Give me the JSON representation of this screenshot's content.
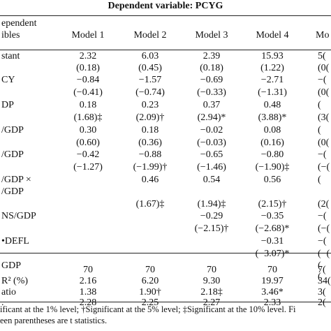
{
  "title": "Dependent variable: PCYG",
  "header": {
    "row_label_lines": [
      "ependent",
      "ibles"
    ],
    "models": [
      "Model 1",
      "Model 2",
      "Model 3",
      "Model 4",
      "Mo"
    ]
  },
  "rows": [
    {
      "label": "stant",
      "cells": [
        "2.32",
        "6.03",
        "2.39",
        "15.93",
        "5("
      ]
    },
    {
      "label": "",
      "cells": [
        "(0.18)",
        "(0.45)",
        "(0.18)",
        "(1.22)",
        "(0("
      ]
    },
    {
      "label": "CY",
      "cells": [
        "−0.84",
        "−1.57",
        "−0.69",
        "−2.71",
        "−("
      ]
    },
    {
      "label": "",
      "cells": [
        "(−0.41)",
        "(−0.74)",
        "(−0.33)",
        "(−1.31)",
        "(0("
      ]
    },
    {
      "label": "DP",
      "cells": [
        "0.18",
        "0.23",
        "0.37",
        "0.48",
        "("
      ]
    },
    {
      "label": "",
      "cells": [
        "(1.68)‡",
        "(2.09)†",
        "(2.94)*",
        "(3.88)*",
        "(3("
      ]
    },
    {
      "label": "/GDP",
      "cells": [
        "0.30",
        "0.18",
        "−0.02",
        "0.08",
        "("
      ]
    },
    {
      "label": "",
      "cells": [
        "(0.60)",
        "(0.36)",
        "(−0.03)",
        "(0.16)",
        "(0("
      ]
    },
    {
      "label": "/GDP",
      "cells": [
        "−0.42",
        "−0.88",
        "−0.65",
        "−0.80",
        "−("
      ]
    },
    {
      "label": "",
      "cells": [
        "(−1.27)",
        "(−1.99)†",
        "(−1.46)",
        "(−1.90)‡",
        "(−("
      ]
    },
    {
      "label": "/GDP ×",
      "cells": [
        "",
        "0.46",
        "0.54",
        "0.56",
        "("
      ]
    },
    {
      "label": "/GDP",
      "cells": [
        "",
        "",
        "",
        "",
        ""
      ]
    },
    {
      "label": "",
      "cells": [
        "",
        "(1.67)‡",
        "(1.94)‡",
        "(2.15)†",
        "(2("
      ]
    },
    {
      "label": "NS/GDP",
      "cells": [
        "",
        "",
        "−0.29",
        "−0.35",
        "−("
      ]
    },
    {
      "label": "",
      "cells": [
        "",
        "",
        "(−2.15)†",
        "(−2.68)*",
        "(−("
      ]
    },
    {
      "label": "•DEFL",
      "cells": [
        "",
        "",
        "",
        "−0.31",
        "−("
      ]
    },
    {
      "label": "",
      "cells": [
        "",
        "",
        "",
        "(−3.07)*",
        "(−("
      ]
    },
    {
      "label": "GDP",
      "cells": [
        "",
        "",
        "",
        "",
        "("
      ]
    },
    {
      "label": "",
      "cells": [
        "",
        "",
        "",
        "",
        "("
      ]
    },
    {
      "label": "",
      "cells": [
        "70",
        "70",
        "70",
        "70",
        "7("
      ]
    },
    {
      "label": "R² (%)",
      "cells": [
        "2.16",
        "6.20",
        "9.30",
        "19.97",
        "34("
      ]
    },
    {
      "label": "atio",
      "cells": [
        "1.38",
        "1.90†",
        "2.18‡",
        "3.46*",
        "3("
      ]
    },
    {
      "label": ".",
      "cells": [
        "2.28",
        "2.25",
        "2.27",
        "2.33",
        "2("
      ]
    }
  ],
  "notes": [
    "ificant at the 1% level; †Significant at the 5% level; ‡Significant at the 10% level. Fi",
    "een parentheses are t statistics."
  ]
}
